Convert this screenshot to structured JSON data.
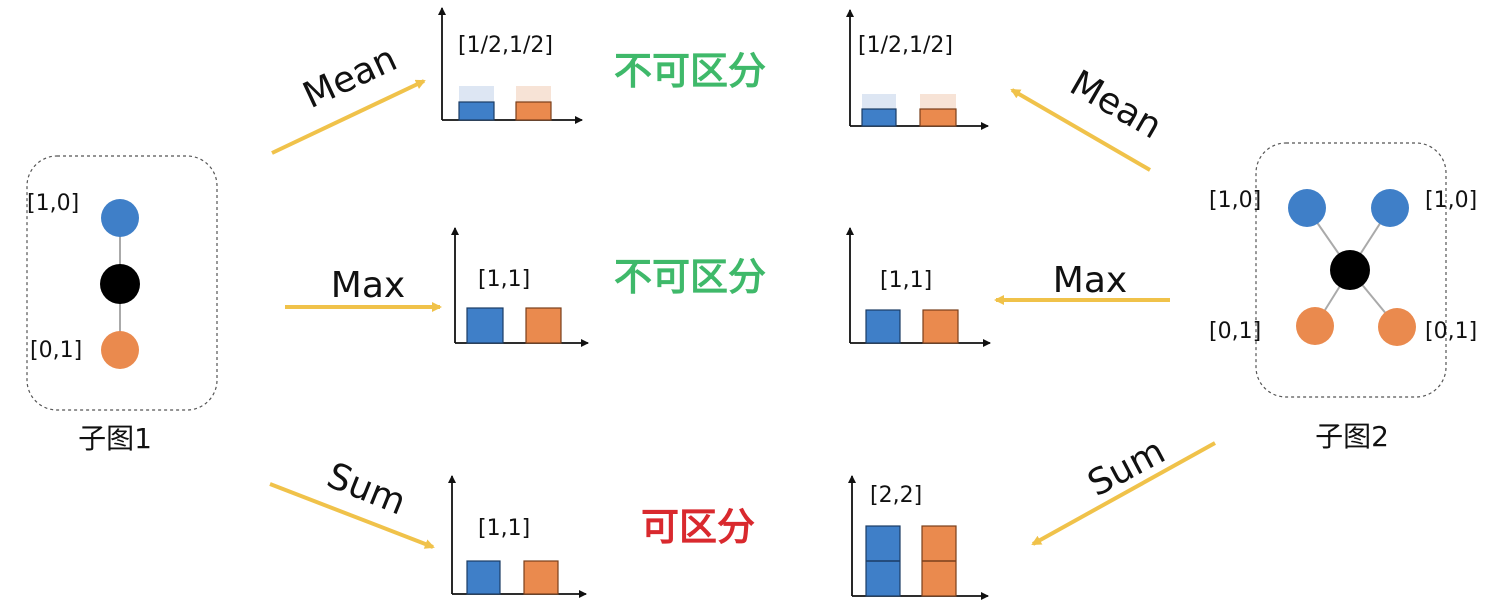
{
  "colors": {
    "node_blue": "#3f7fc8",
    "node_orange": "#ea8a4e",
    "node_black": "#000000",
    "arrow_yellow": "#f0c24a",
    "green_text": "#3fb96a",
    "red_text": "#d9292e"
  },
  "graph1": {
    "title": "子图1",
    "node_top_label": "[1,0]",
    "node_bottom_label": "[0,1]"
  },
  "graph2": {
    "title": "子图2",
    "top_left_label": "[1,0]",
    "top_right_label": "[1,0]",
    "bottom_left_label": "[0,1]",
    "bottom_right_label": "[0,1]"
  },
  "rows": [
    {
      "op": "Mean",
      "verdict": "不可区分",
      "verdict_color": "green",
      "left_value": "[1/2,1/2]",
      "right_value": "[1/2,1/2]",
      "left_bars": [
        0.5,
        0.5
      ],
      "right_bars": [
        0.5,
        0.5
      ]
    },
    {
      "op": "Max",
      "verdict": "不可区分",
      "verdict_color": "green",
      "left_value": "[1,1]",
      "right_value": "[1,1]",
      "left_bars": [
        1,
        1
      ],
      "right_bars": [
        1,
        1
      ]
    },
    {
      "op": "Sum",
      "verdict": "可区分",
      "verdict_color": "red",
      "left_value": "[1,1]",
      "right_value": "[2,2]",
      "left_bars": [
        1,
        1
      ],
      "right_bars": [
        2,
        2
      ]
    }
  ]
}
